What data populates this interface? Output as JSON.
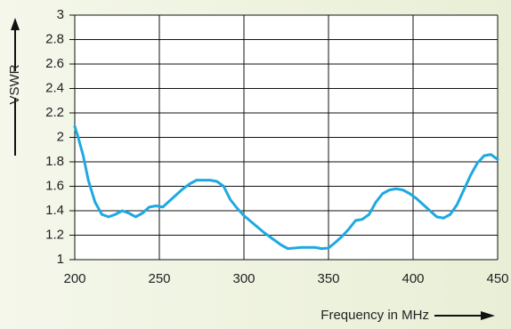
{
  "chart_data": {
    "type": "line",
    "xlabel": "Frequency in MHz",
    "ylabel": "VSWR",
    "xlim": [
      200,
      450
    ],
    "ylim": [
      1,
      3
    ],
    "xticks": [
      200,
      250,
      300,
      350,
      400,
      450
    ],
    "yticks": [
      1,
      1.2,
      1.4,
      1.6,
      1.8,
      2,
      2.2,
      2.4,
      2.6,
      2.8,
      3
    ],
    "grid": true,
    "line_color": "#1ea9e1",
    "series": [
      {
        "x": [
          200,
          202,
          205,
          208,
          212,
          216,
          220,
          224,
          228,
          232,
          236,
          240,
          244,
          248,
          252,
          256,
          260,
          264,
          268,
          272,
          276,
          280,
          284,
          288,
          292,
          296,
          300,
          306,
          312,
          318,
          322,
          326,
          330,
          334,
          338,
          342,
          346,
          350,
          354,
          358,
          362,
          366,
          370,
          374,
          378,
          382,
          386,
          390,
          394,
          398,
          402,
          406,
          410,
          414,
          418,
          422,
          426,
          430,
          434,
          438,
          442,
          446,
          450
        ],
        "y": [
          2.09,
          2.0,
          1.85,
          1.65,
          1.47,
          1.37,
          1.35,
          1.37,
          1.4,
          1.38,
          1.35,
          1.38,
          1.43,
          1.44,
          1.43,
          1.48,
          1.53,
          1.58,
          1.62,
          1.65,
          1.65,
          1.65,
          1.64,
          1.6,
          1.49,
          1.42,
          1.36,
          1.29,
          1.22,
          1.16,
          1.12,
          1.09,
          1.095,
          1.1,
          1.1,
          1.1,
          1.09,
          1.095,
          1.14,
          1.19,
          1.25,
          1.32,
          1.33,
          1.37,
          1.47,
          1.54,
          1.57,
          1.58,
          1.57,
          1.54,
          1.5,
          1.45,
          1.4,
          1.35,
          1.34,
          1.37,
          1.45,
          1.57,
          1.69,
          1.79,
          1.85,
          1.86,
          1.82
        ]
      }
    ]
  }
}
